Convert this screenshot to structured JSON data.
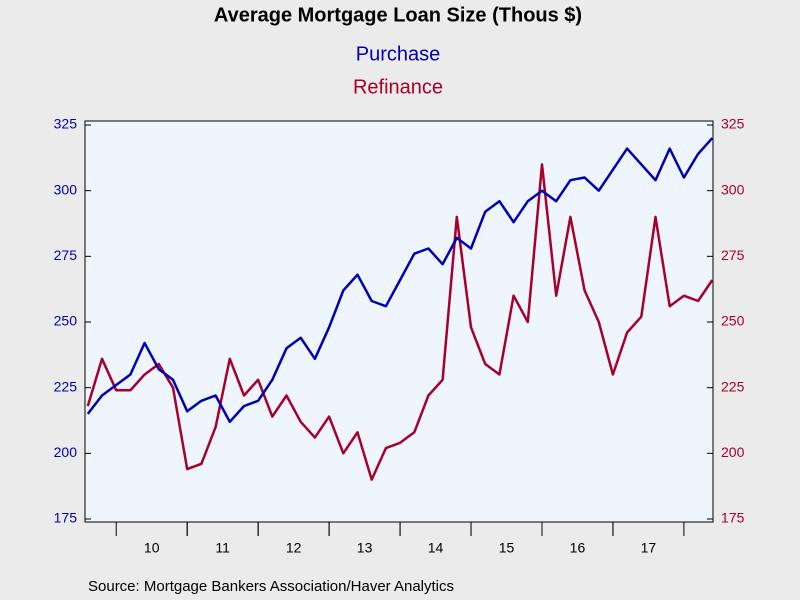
{
  "chart_data": {
    "type": "line",
    "title": "Average Mortgage Loan Size (Thous $)",
    "source": "Source:  Mortgage Bankers Association/Haver Analytics",
    "x": [
      2009.6,
      2009.8,
      2010.0,
      2010.2,
      2010.4,
      2010.6,
      2010.8,
      2011.0,
      2011.2,
      2011.4,
      2011.6,
      2011.8,
      2012.0,
      2012.2,
      2012.4,
      2012.6,
      2012.8,
      2013.0,
      2013.2,
      2013.4,
      2013.6,
      2013.8,
      2014.0,
      2014.2,
      2014.4,
      2014.6,
      2014.8,
      2015.0,
      2015.2,
      2015.4,
      2015.6,
      2015.8,
      2016.0,
      2016.2,
      2016.4,
      2016.6,
      2016.8,
      2017.0,
      2017.2,
      2017.4,
      2017.6,
      2017.8,
      2018.0,
      2018.2,
      2018.4
    ],
    "series": [
      {
        "name": "Purchase",
        "color": "#0000b4",
        "axis": "y",
        "values": [
          215,
          222,
          226,
          230,
          242,
          232,
          228,
          216,
          220,
          222,
          212,
          218,
          220,
          228,
          240,
          244,
          236,
          248,
          262,
          268,
          258,
          256,
          266,
          276,
          278,
          272,
          282,
          278,
          292,
          296,
          288,
          296,
          300,
          296,
          304,
          305,
          300,
          308,
          316,
          310,
          304,
          316,
          305,
          314,
          320
        ]
      },
      {
        "name": "Refinance",
        "color": "#a8002a",
        "axis": "y2",
        "values": [
          218,
          236,
          224,
          224,
          230,
          234,
          225,
          194,
          196,
          210,
          236,
          222,
          228,
          214,
          222,
          212,
          206,
          214,
          200,
          208,
          190,
          202,
          204,
          208,
          222,
          228,
          290,
          248,
          234,
          230,
          260,
          250,
          310,
          260,
          290,
          262,
          250,
          230,
          246,
          252,
          290,
          256,
          260,
          258,
          266
        ]
      }
    ],
    "xlim": [
      2009.56,
      2018.41
    ],
    "xticks": [
      {
        "value": 2010.5,
        "label": "10"
      },
      {
        "value": 2011.5,
        "label": "11"
      },
      {
        "value": 2012.5,
        "label": "12"
      },
      {
        "value": 2013.5,
        "label": "13"
      },
      {
        "value": 2014.5,
        "label": "14"
      },
      {
        "value": 2015.5,
        "label": "15"
      },
      {
        "value": 2016.5,
        "label": "16"
      },
      {
        "value": 2017.5,
        "label": "17"
      }
    ],
    "ylim": [
      175,
      325
    ],
    "yticks": [
      175,
      200,
      225,
      250,
      275,
      300,
      325
    ],
    "y2lim": [
      175,
      325
    ],
    "y2ticks": [
      175,
      200,
      225,
      250,
      275,
      300,
      325
    ]
  }
}
